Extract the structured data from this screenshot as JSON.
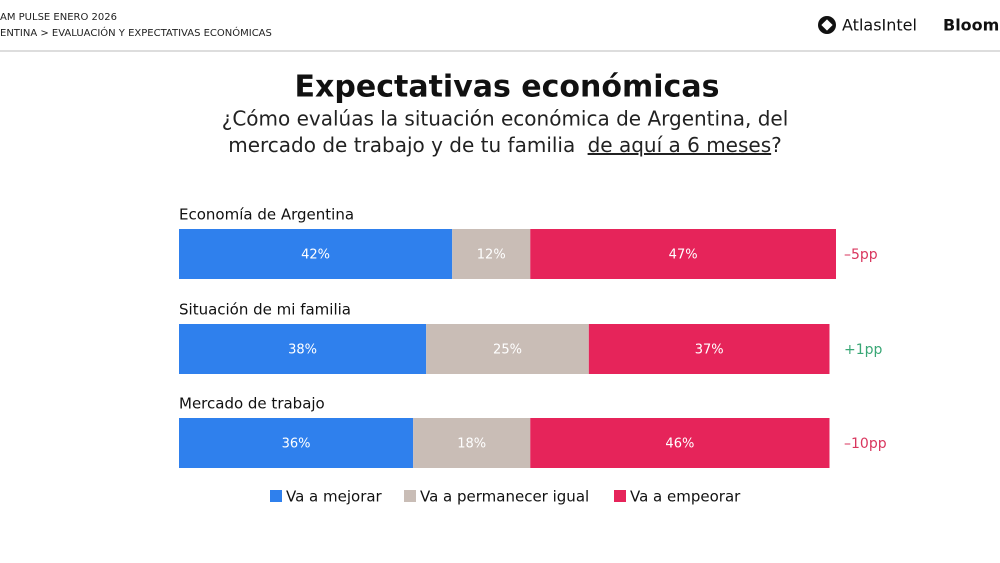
{
  "header": {
    "survey": "AM PULSE ENERO 2026",
    "breadcrumb": "ENTINA > EVALUACIÓN Y EXPECTATIVAS ECONÓMICAS",
    "brand": "AtlasIntel",
    "partner": "Bloomb"
  },
  "chart_data": {
    "type": "stacked-bar-horizontal",
    "title": "Expectativas económicas",
    "subtitle": [
      "¿Cómo evalúas la situación económica de Argentina, del",
      "mercado de trabajo y de tu familia",
      "de aquí a 6 meses",
      "?"
    ],
    "categories": [
      "Economía de Argentina",
      "Situación de mi familia",
      "Mercado de trabajo"
    ],
    "series": [
      {
        "name": "Va a mejorar",
        "color": "#2f80ed",
        "values": [
          42,
          38,
          36
        ],
        "value_labels": [
          "42%",
          "38%",
          "36%"
        ]
      },
      {
        "name": "Va a permanecer igual",
        "color": "#c9bdb6",
        "values": [
          12,
          25,
          18
        ],
        "value_labels": [
          "12%",
          "25%",
          "18%"
        ]
      },
      {
        "name": "Va a empeorar",
        "color": "#e6245a",
        "values": [
          47,
          37,
          46
        ],
        "value_labels": [
          "47%",
          "37%",
          "46%"
        ]
      }
    ],
    "annotations": [
      {
        "text": "–5pp",
        "color": "#d9365e"
      },
      {
        "text": "+1pp",
        "color": "#3aa776"
      },
      {
        "text": "–10pp",
        "color": "#d9365e"
      }
    ],
    "legend": "bottom"
  }
}
